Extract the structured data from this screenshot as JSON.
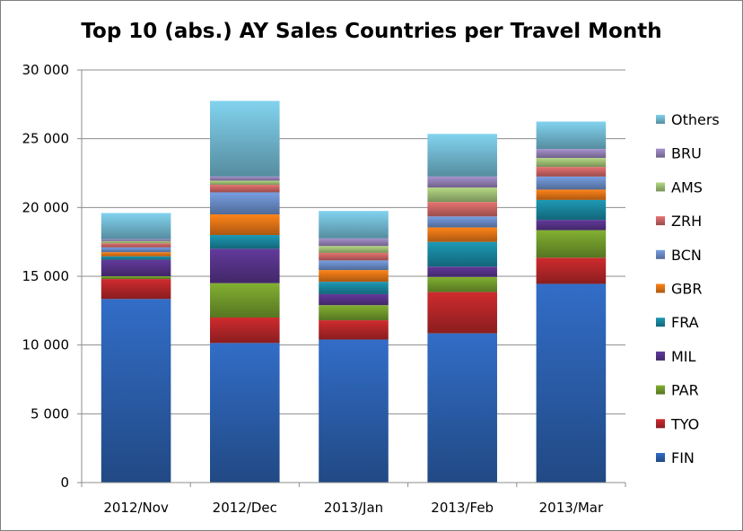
{
  "chart_data": {
    "type": "bar",
    "stacked": true,
    "title": "Top 10 (abs.) AY Sales Countries per Travel Month",
    "xlabel": "",
    "ylabel": "",
    "categories": [
      "2012/Nov",
      "2012/Dec",
      "2013/Jan",
      "2013/Feb",
      "2013/Mar"
    ],
    "ylim": [
      0,
      30000
    ],
    "yticks": [
      0,
      5000,
      10000,
      15000,
      20000,
      25000,
      30000
    ],
    "ytick_labels": [
      "0",
      "5 000",
      "10 000",
      "15 000",
      "20 000",
      "25 000",
      "30 000"
    ],
    "grid": true,
    "legend_position": "right",
    "series": [
      {
        "name": "FIN",
        "color": "#2e65b8",
        "values": [
          13350,
          10150,
          10400,
          10850,
          14450
        ]
      },
      {
        "name": "TYO",
        "color": "#c0282b",
        "values": [
          1450,
          1850,
          1400,
          3000,
          1900
        ]
      },
      {
        "name": "PAR",
        "color": "#78a32e",
        "values": [
          200,
          2500,
          1100,
          1100,
          2000
        ]
      },
      {
        "name": "MIL",
        "color": "#5b3690",
        "values": [
          1200,
          2500,
          800,
          750,
          750
        ]
      },
      {
        "name": "FRA",
        "color": "#1b8ea8",
        "values": [
          250,
          1000,
          900,
          1800,
          1450
        ]
      },
      {
        "name": "GBR",
        "color": "#ef7a17",
        "values": [
          300,
          1500,
          850,
          1050,
          750
        ]
      },
      {
        "name": "BCN",
        "color": "#6f93d2",
        "values": [
          350,
          1600,
          700,
          800,
          950
        ]
      },
      {
        "name": "ZRH",
        "color": "#d66a6a",
        "values": [
          300,
          550,
          550,
          1050,
          700
        ]
      },
      {
        "name": "AMS",
        "color": "#a8c97a",
        "values": [
          150,
          300,
          500,
          1050,
          650
        ]
      },
      {
        "name": "BRU",
        "color": "#9b87bf",
        "values": [
          150,
          300,
          550,
          800,
          650
        ]
      },
      {
        "name": "Others",
        "color": "#78c3dd",
        "values": [
          1900,
          5500,
          2000,
          3100,
          2000
        ]
      }
    ]
  }
}
